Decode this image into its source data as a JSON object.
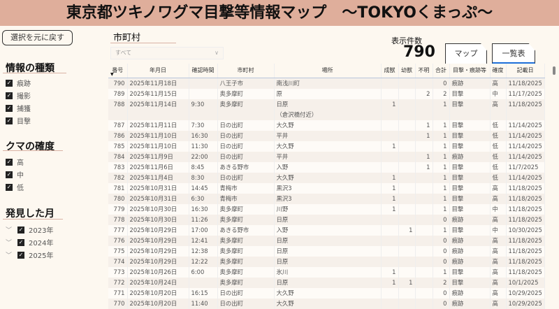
{
  "title": "東京都ツキノワグマ目撃等情報マップ　～TOKYOくまっぷ～",
  "reset_button": "選択を元に戻す",
  "filters": {
    "info_type": {
      "title": "情報の種類",
      "items": [
        "痕跡",
        "撮影",
        "捕獲",
        "目撃"
      ]
    },
    "certainty": {
      "title": "クマの確度",
      "items": [
        "高",
        "中",
        "低"
      ]
    },
    "month": {
      "title": "発見した月",
      "items": [
        "2023年",
        "2024年",
        "2025年"
      ]
    },
    "municipality": {
      "title": "市町村",
      "value": "すべて"
    }
  },
  "count": {
    "label": "表示件数",
    "value": "790"
  },
  "tabs": [
    {
      "label": "マップ",
      "active": false
    },
    {
      "label": "一覧表",
      "active": true
    }
  ],
  "accent": "#1e6fd9",
  "table": {
    "columns": [
      "番号",
      "年月日",
      "確認時間",
      "市町村",
      "場所",
      "成獣",
      "幼獣",
      "不明",
      "合計",
      "目撃・痕跡等",
      "確度",
      "記載日"
    ],
    "rows": [
      [
        "790",
        "2025年11月18日",
        "",
        "八王子市",
        "南浅川町",
        "",
        "",
        "",
        "0",
        "痕跡",
        "高",
        "11/18/2025"
      ],
      [
        "789",
        "2025年11月15日",
        "",
        "奥多摩町",
        "原",
        "",
        "",
        "2",
        "2",
        "目撃",
        "中",
        "11/17/2025"
      ],
      [
        "788",
        "2025年11月14日",
        "9:30",
        "奥多摩町",
        "日原\n（倉沢橋付近）",
        "1",
        "",
        "",
        "1",
        "目撃",
        "高",
        "11/18/2025"
      ],
      [
        "787",
        "2025年11月11日",
        "7:30",
        "日の出町",
        "大久野",
        "",
        "",
        "1",
        "1",
        "目撃",
        "低",
        "11/14/2025"
      ],
      [
        "786",
        "2025年11月10日",
        "16:30",
        "日の出町",
        "平井",
        "",
        "",
        "1",
        "1",
        "目撃",
        "低",
        "11/14/2025"
      ],
      [
        "785",
        "2025年11月10日",
        "11:30",
        "日の出町",
        "大久野",
        "1",
        "",
        "",
        "1",
        "目撃",
        "低",
        "11/14/2025"
      ],
      [
        "784",
        "2025年11月9日",
        "22:00",
        "日の出町",
        "平井",
        "",
        "",
        "1",
        "1",
        "痕跡",
        "低",
        "11/14/2025"
      ],
      [
        "783",
        "2025年11月6日",
        "8:45",
        "あきる野市",
        "入野",
        "",
        "",
        "1",
        "1",
        "目撃",
        "低",
        "11/7/2025"
      ],
      [
        "782",
        "2025年11月4日",
        "8:30",
        "日の出町",
        "大久野",
        "1",
        "",
        "",
        "1",
        "目撃",
        "低",
        "11/14/2025"
      ],
      [
        "781",
        "2025年10月31日",
        "14:45",
        "青梅市",
        "黒沢3",
        "1",
        "",
        "",
        "1",
        "目撃",
        "高",
        "11/18/2025"
      ],
      [
        "780",
        "2025年10月31日",
        "6:30",
        "青梅市",
        "黒沢3",
        "1",
        "",
        "",
        "1",
        "目撃",
        "高",
        "11/18/2025"
      ],
      [
        "779",
        "2025年10月30日",
        "16:30",
        "奥多摩町",
        "川野",
        "1",
        "",
        "",
        "1",
        "目撃",
        "中",
        "11/18/2025"
      ],
      [
        "778",
        "2025年10月30日",
        "11:26",
        "奥多摩町",
        "日原",
        "",
        "",
        "",
        "0",
        "痕跡",
        "高",
        "11/18/2025"
      ],
      [
        "777",
        "2025年10月29日",
        "17:00",
        "あきる野市",
        "入野",
        "",
        "1",
        "",
        "1",
        "目撃",
        "中",
        "10/30/2025"
      ],
      [
        "776",
        "2025年10月29日",
        "12:41",
        "奥多摩町",
        "日原",
        "",
        "",
        "",
        "0",
        "痕跡",
        "高",
        "11/18/2025"
      ],
      [
        "775",
        "2025年10月29日",
        "12:38",
        "奥多摩町",
        "日原",
        "",
        "",
        "",
        "0",
        "痕跡",
        "高",
        "11/18/2025"
      ],
      [
        "774",
        "2025年10月29日",
        "12:22",
        "奥多摩町",
        "日原",
        "",
        "",
        "",
        "0",
        "痕跡",
        "高",
        "11/18/2025"
      ],
      [
        "773",
        "2025年10月26日",
        "6:00",
        "奥多摩町",
        "氷川",
        "1",
        "",
        "",
        "1",
        "目撃",
        "高",
        "11/18/2025"
      ],
      [
        "772",
        "2025年10月24日",
        "",
        "奥多摩町",
        "日原",
        "1",
        "1",
        "",
        "2",
        "目撃",
        "高",
        "10/1/2025"
      ],
      [
        "771",
        "2025年10月20日",
        "16:15",
        "日の出町",
        "大久野",
        "",
        "",
        "",
        "0",
        "痕跡",
        "高",
        "10/29/2025"
      ],
      [
        "770",
        "2025年10月20日",
        "11:40",
        "日の出町",
        "大久野",
        "",
        "",
        "",
        "0",
        "痕跡",
        "高",
        "10/29/2025"
      ]
    ]
  }
}
